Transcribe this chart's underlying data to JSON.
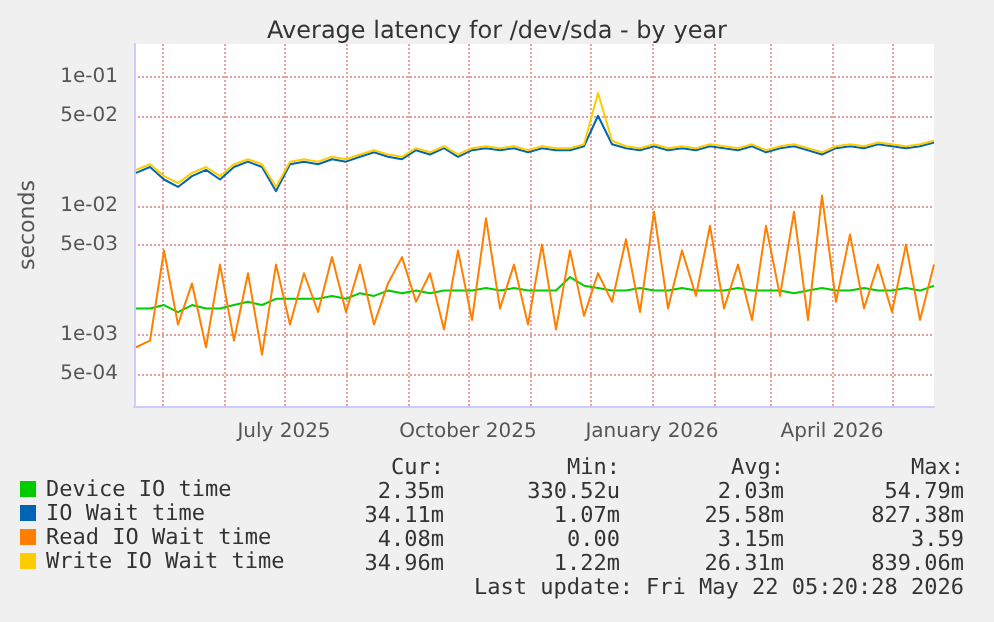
{
  "chart_data": {
    "type": "line",
    "title": "Average latency for /dev/sda - by year",
    "ylabel": "seconds",
    "x": [
      "2025-04-18",
      "2025-04-25",
      "2025-05-02",
      "2025-05-09",
      "2025-05-16",
      "2025-05-23",
      "2025-05-30",
      "2025-06-06",
      "2025-06-13",
      "2025-06-20",
      "2025-06-27",
      "2025-07-04",
      "2025-07-11",
      "2025-07-18",
      "2025-07-25",
      "2025-08-01",
      "2025-08-08",
      "2025-08-15",
      "2025-08-22",
      "2025-08-29",
      "2025-09-05",
      "2025-09-12",
      "2025-09-19",
      "2025-09-26",
      "2025-10-03",
      "2025-10-10",
      "2025-10-17",
      "2025-10-24",
      "2025-10-31",
      "2025-11-07",
      "2025-11-14",
      "2025-11-21",
      "2025-11-28",
      "2025-12-05",
      "2025-12-12",
      "2025-12-19",
      "2025-12-26",
      "2026-01-02",
      "2026-01-09",
      "2026-01-16",
      "2026-01-23",
      "2026-01-30",
      "2026-02-06",
      "2026-02-13",
      "2026-02-20",
      "2026-02-27",
      "2026-03-06",
      "2026-03-13",
      "2026-03-20",
      "2026-03-27",
      "2026-04-03",
      "2026-04-10",
      "2026-04-17",
      "2026-04-24",
      "2026-05-01",
      "2026-05-08",
      "2026-05-15",
      "2026-05-22"
    ],
    "series": [
      {
        "name": "Device IO time",
        "color": "#00cc00",
        "values": [
          0.0016,
          0.0016,
          0.0017,
          0.0015,
          0.0017,
          0.0016,
          0.0016,
          0.0017,
          0.0018,
          0.0017,
          0.0019,
          0.0019,
          0.0019,
          0.0019,
          0.002,
          0.0019,
          0.0021,
          0.002,
          0.0022,
          0.0021,
          0.0022,
          0.0021,
          0.0022,
          0.0022,
          0.0022,
          0.0023,
          0.0022,
          0.0023,
          0.0022,
          0.0022,
          0.0022,
          0.0028,
          0.0024,
          0.0023,
          0.0022,
          0.0022,
          0.0023,
          0.0022,
          0.0022,
          0.0023,
          0.0022,
          0.0022,
          0.0022,
          0.0023,
          0.0022,
          0.0022,
          0.0022,
          0.0021,
          0.0022,
          0.0023,
          0.0022,
          0.0022,
          0.0023,
          0.0022,
          0.0022,
          0.0023,
          0.0022,
          0.0024
        ]
      },
      {
        "name": "IO Wait time",
        "color": "#0066b3",
        "values": [
          0.018,
          0.02,
          0.016,
          0.014,
          0.017,
          0.019,
          0.016,
          0.02,
          0.022,
          0.02,
          0.013,
          0.021,
          0.022,
          0.021,
          0.023,
          0.022,
          0.024,
          0.026,
          0.024,
          0.023,
          0.027,
          0.025,
          0.028,
          0.024,
          0.027,
          0.028,
          0.027,
          0.028,
          0.026,
          0.028,
          0.027,
          0.027,
          0.029,
          0.05,
          0.03,
          0.028,
          0.027,
          0.029,
          0.027,
          0.028,
          0.027,
          0.029,
          0.028,
          0.027,
          0.029,
          0.026,
          0.028,
          0.029,
          0.027,
          0.025,
          0.028,
          0.029,
          0.028,
          0.03,
          0.029,
          0.028,
          0.029,
          0.031
        ]
      },
      {
        "name": "Read IO Wait time",
        "color": "#ff8000",
        "values": [
          0.0008,
          0.0009,
          0.0045,
          0.0012,
          0.0025,
          0.0008,
          0.0035,
          0.0009,
          0.003,
          0.0007,
          0.0035,
          0.0012,
          0.003,
          0.0015,
          0.004,
          0.0015,
          0.0035,
          0.0012,
          0.0025,
          0.004,
          0.0018,
          0.003,
          0.0011,
          0.0045,
          0.0013,
          0.008,
          0.0016,
          0.0035,
          0.0012,
          0.005,
          0.0011,
          0.0045,
          0.0014,
          0.003,
          0.0018,
          0.0055,
          0.0015,
          0.009,
          0.0016,
          0.0045,
          0.002,
          0.007,
          0.0016,
          0.0035,
          0.0013,
          0.007,
          0.002,
          0.009,
          0.0013,
          0.012,
          0.0018,
          0.006,
          0.0016,
          0.0035,
          0.0015,
          0.005,
          0.0013,
          0.0035
        ]
      },
      {
        "name": "Write IO Wait time",
        "color": "#ffcc00",
        "values": [
          0.019,
          0.021,
          0.017,
          0.015,
          0.018,
          0.02,
          0.017,
          0.021,
          0.023,
          0.021,
          0.014,
          0.022,
          0.023,
          0.022,
          0.024,
          0.023,
          0.025,
          0.027,
          0.025,
          0.024,
          0.028,
          0.026,
          0.029,
          0.025,
          0.028,
          0.029,
          0.028,
          0.029,
          0.027,
          0.029,
          0.028,
          0.028,
          0.03,
          0.075,
          0.032,
          0.029,
          0.028,
          0.03,
          0.028,
          0.029,
          0.028,
          0.03,
          0.029,
          0.028,
          0.03,
          0.027,
          0.029,
          0.03,
          0.028,
          0.026,
          0.029,
          0.03,
          0.029,
          0.031,
          0.03,
          0.029,
          0.03,
          0.032
        ]
      }
    ],
    "log": "y",
    "ylim": [
      0.00028,
      0.18
    ],
    "yticks": [
      {
        "value": 0.0005,
        "label": "5e-04"
      },
      {
        "value": 0.001,
        "label": "1e-03"
      },
      {
        "value": 0.005,
        "label": "5e-03"
      },
      {
        "value": 0.01,
        "label": "1e-02"
      },
      {
        "value": 0.05,
        "label": "5e-02"
      },
      {
        "value": 0.1,
        "label": "1e-01"
      }
    ],
    "xlim": [
      "2025-04-17",
      "2026-05-22"
    ],
    "xticks": [
      {
        "value": "2025-05-01",
        "label": null
      },
      {
        "value": "2025-06-01",
        "label": null
      },
      {
        "value": "2025-07-01",
        "label": "July 2025"
      },
      {
        "value": "2025-08-01",
        "label": null
      },
      {
        "value": "2025-09-01",
        "label": null
      },
      {
        "value": "2025-10-01",
        "label": "October 2025"
      },
      {
        "value": "2025-11-01",
        "label": null
      },
      {
        "value": "2025-12-01",
        "label": null
      },
      {
        "value": "2026-01-01",
        "label": "January 2026"
      },
      {
        "value": "2026-02-01",
        "label": null
      },
      {
        "value": "2026-03-01",
        "label": null
      },
      {
        "value": "2026-04-01",
        "label": "April 2026"
      },
      {
        "value": "2026-05-01",
        "label": null
      }
    ],
    "grid": true,
    "legend": "bottom left",
    "marker": "none",
    "line_style": "solid",
    "annotations": [
      "Cur:",
      "Min:",
      "Avg:",
      "Max:",
      "2.35m",
      "330.52u",
      "2.03m",
      "54.79m",
      "34.11m",
      "1.07m",
      "25.58m",
      "827.38m",
      "4.08m",
      "0.00",
      "3.15m",
      "3.59",
      "34.96m",
      "1.22m",
      "26.31m",
      "839.06m",
      "Last update: Fri May 22 05:20:28 2026"
    ]
  }
}
